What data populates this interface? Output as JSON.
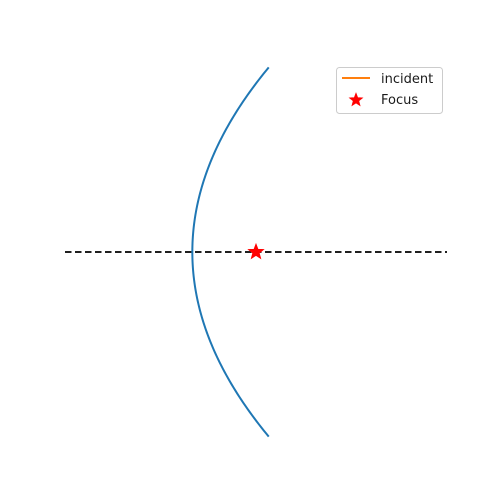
{
  "chart_data": {
    "type": "line",
    "title": "",
    "xlabel": "",
    "ylabel": "",
    "axes_visible": false,
    "grid": false,
    "xlim": [
      -1.0,
      2.0
    ],
    "ylim": [
      -1.3,
      1.3
    ],
    "series": [
      {
        "role": "mirror-curve",
        "color": "#1f77b4",
        "linestyle": "solid",
        "x": [
          1.0,
          0.75,
          0.5,
          0.3,
          0.15,
          0.05,
          0.0,
          0.05,
          0.15,
          0.3,
          0.5,
          0.75,
          1.0
        ],
        "y": [
          1.2,
          1.0392,
          0.8485,
          0.6573,
          0.4648,
          0.2683,
          0.0,
          -0.2683,
          -0.4648,
          -0.6573,
          -0.8485,
          -1.0392,
          -1.2
        ]
      },
      {
        "role": "optical-axis",
        "color": "#000000",
        "linestyle": "dashed",
        "x": [
          -1.0,
          2.0
        ],
        "y": [
          0.0,
          0.0
        ]
      },
      {
        "name": "incident",
        "color": "#ff7f0e",
        "linestyle": "solid",
        "x": [],
        "y": []
      }
    ],
    "points": [
      {
        "name": "Focus",
        "marker": "star",
        "color": "#ff0000",
        "x": 0.5,
        "y": 0.0
      }
    ],
    "legend": {
      "placement": "top-right",
      "entries": [
        {
          "label": "incident",
          "kind": "line",
          "color": "#ff7f0e"
        },
        {
          "label": "Focus",
          "kind": "star",
          "color": "#ff0000"
        }
      ]
    }
  }
}
